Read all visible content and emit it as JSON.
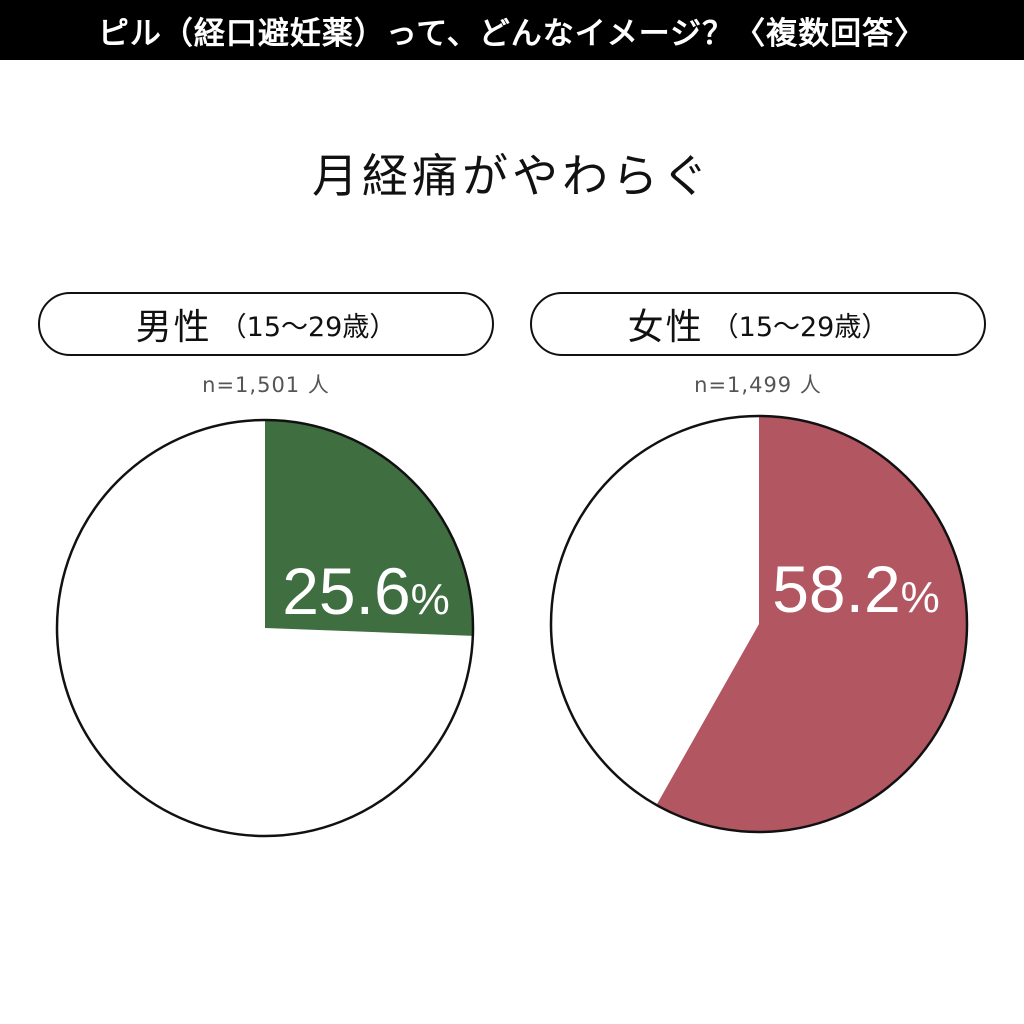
{
  "header": {
    "title": "ピル（経口避妊薬）って、どんなイメージ？〈複数回答〉"
  },
  "main_title": "月経痛がやわらぐ",
  "colors": {
    "male": "#3f6e41",
    "female": "#b25662",
    "remainder": "#ffffff",
    "outline": "#111111"
  },
  "chart_data": [
    {
      "type": "pie",
      "group_label": "男性",
      "age_label": "（15〜29歳）",
      "n_label": "n=1,501 人",
      "value_text": "25.6",
      "unit": "%",
      "values": [
        25.6,
        74.4
      ]
    },
    {
      "type": "pie",
      "group_label": "女性",
      "age_label": "（15〜29歳）",
      "n_label": "n=1,499 人",
      "value_text": "58.2",
      "unit": "%",
      "values": [
        58.2,
        41.8
      ]
    }
  ]
}
